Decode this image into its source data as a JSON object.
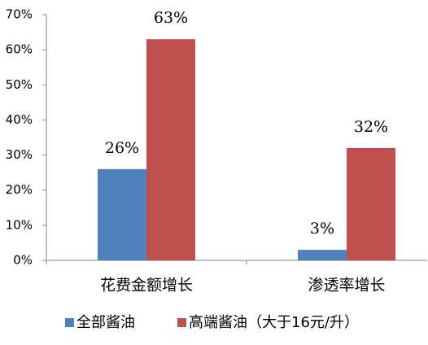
{
  "chart_data": {
    "type": "bar",
    "categories": [
      "花费金额增长",
      "渗透率增长"
    ],
    "series": [
      {
        "name": "全部酱油",
        "color": "#4f81bd",
        "values": [
          26,
          3
        ],
        "value_labels": [
          "26%",
          "3%"
        ]
      },
      {
        "name": "高端酱油（大于16元/升）",
        "color": "#c0504d",
        "values": [
          63,
          32
        ],
        "value_labels": [
          "63%",
          "32%"
        ]
      }
    ],
    "ylim": [
      0,
      70
    ],
    "yticks": [
      {
        "value": 0,
        "label": "0%"
      },
      {
        "value": 10,
        "label": "10%"
      },
      {
        "value": 20,
        "label": "20%"
      },
      {
        "value": 30,
        "label": "30%"
      },
      {
        "value": 40,
        "label": "40%"
      },
      {
        "value": 50,
        "label": "50%"
      },
      {
        "value": 60,
        "label": "60%"
      },
      {
        "value": 70,
        "label": "70%"
      }
    ],
    "grid": false,
    "legend": "bottom"
  }
}
